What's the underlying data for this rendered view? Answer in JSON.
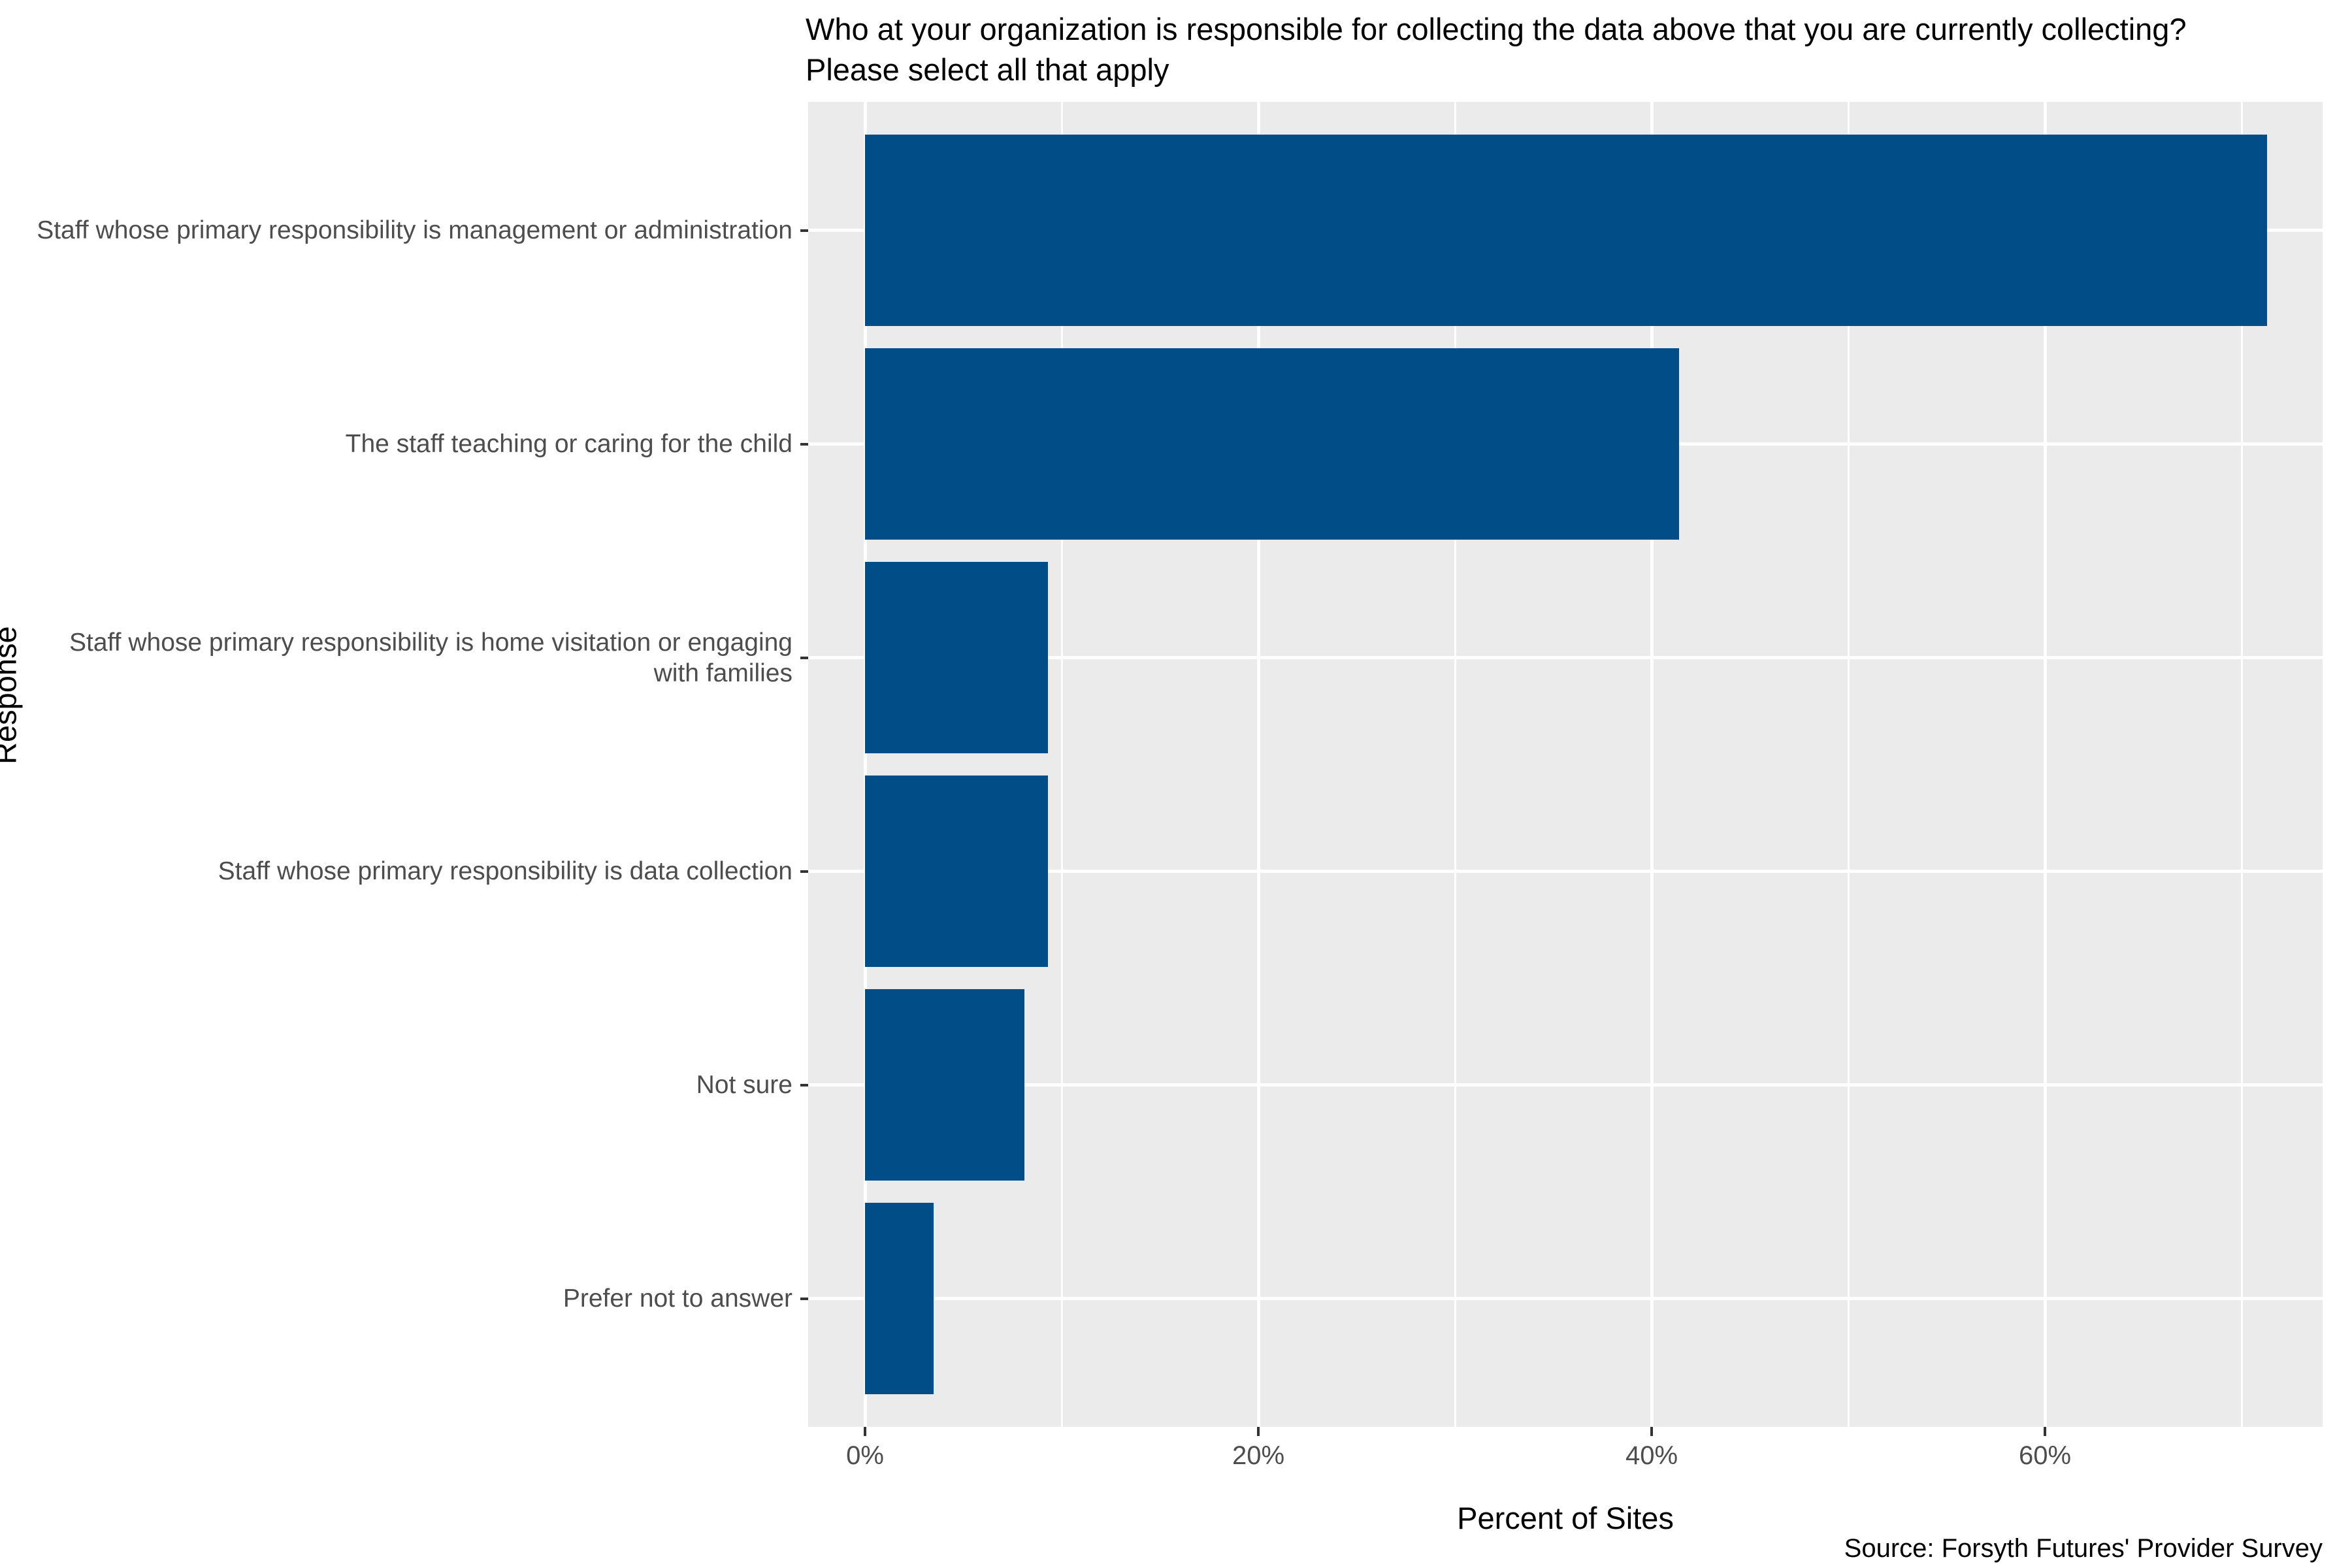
{
  "title": "Who at your organization is responsible for collecting the data above that you are currently collecting? Please select all that apply",
  "caption": "Source: Forsyth Futures' Provider Survey",
  "axes": {
    "x_label": "Percent of Sites",
    "y_label": "Response",
    "x_tick_labels": [
      "0%",
      "20%",
      "40%",
      "60%"
    ]
  },
  "colors": {
    "bar": "#004d87",
    "panel_background": "#ebebeb",
    "gridline": "#ffffff",
    "axis_text": "#4d4d4d",
    "title_text": "#000000"
  },
  "chart_data": {
    "type": "bar",
    "orientation": "horizontal",
    "title": "Who at your organization is responsible for collecting the data above that you are currently collecting? Please select all that apply",
    "xlabel": "Percent of Sites",
    "ylabel": "Response",
    "source": "Source: Forsyth Futures' Provider Survey",
    "categories": [
      "Staff whose primary responsibility is management or administration",
      "The staff teaching or caring for the child",
      "Staff whose primary responsibility is home visitation or engaging with families",
      "Staff whose primary responsibility is data collection",
      "Not sure",
      "Prefer not to answer"
    ],
    "values": [
      71.3,
      41.4,
      9.3,
      9.3,
      8.1,
      3.5
    ],
    "value_unit": "percent of sites",
    "xlim": [
      -2.9,
      74.1
    ],
    "x_major_ticks": [
      0,
      20,
      40,
      60
    ],
    "x_minor_gridlines": [
      10,
      30,
      50,
      70
    ],
    "grid": true,
    "legend": "none"
  }
}
